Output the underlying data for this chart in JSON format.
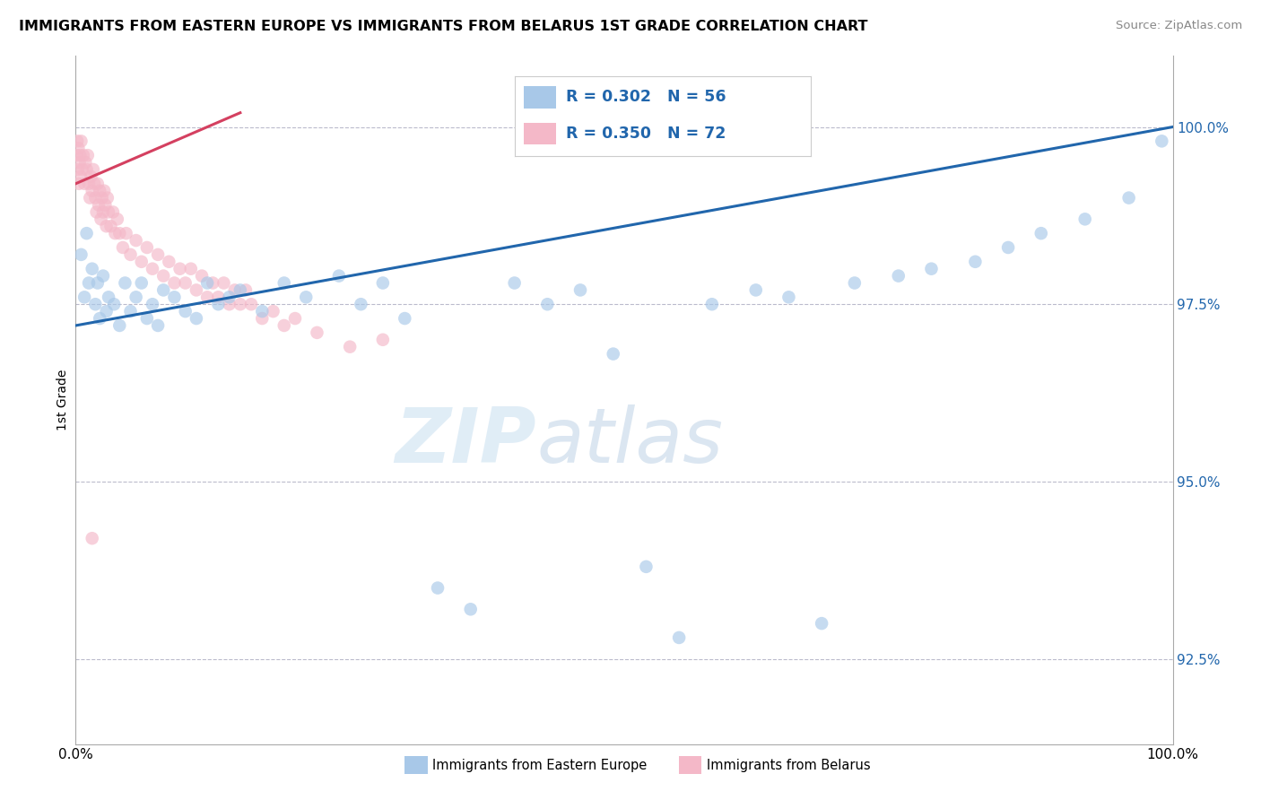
{
  "title": "IMMIGRANTS FROM EASTERN EUROPE VS IMMIGRANTS FROM BELARUS 1ST GRADE CORRELATION CHART",
  "source": "Source: ZipAtlas.com",
  "xlabel_blue": "Immigrants from Eastern Europe",
  "xlabel_pink": "Immigrants from Belarus",
  "ylabel": "1st Grade",
  "watermark_zip": "ZIP",
  "watermark_atlas": "atlas",
  "blue_R": 0.302,
  "blue_N": 56,
  "pink_R": 0.35,
  "pink_N": 72,
  "blue_color": "#a8c8e8",
  "pink_color": "#f4b8c8",
  "blue_line_color": "#2166ac",
  "pink_line_color": "#d44060",
  "xlim": [
    0.0,
    100.0
  ],
  "ylim": [
    91.3,
    101.0
  ],
  "yticks": [
    92.5,
    95.0,
    97.5,
    100.0
  ],
  "ytick_labels": [
    "92.5%",
    "95.0%",
    "97.5%",
    "100.0%"
  ],
  "blue_line_x0": 0.0,
  "blue_line_y0": 97.2,
  "blue_line_x1": 100.0,
  "blue_line_y1": 100.0,
  "pink_line_x0": 0.0,
  "pink_line_y0": 99.2,
  "pink_line_x1": 15.0,
  "pink_line_y1": 100.2,
  "blue_x": [
    0.5,
    0.8,
    1.0,
    1.2,
    1.5,
    1.8,
    2.0,
    2.2,
    2.5,
    2.8,
    3.0,
    3.5,
    4.0,
    4.5,
    5.0,
    5.5,
    6.0,
    6.5,
    7.0,
    7.5,
    8.0,
    9.0,
    10.0,
    11.0,
    12.0,
    13.0,
    14.0,
    15.0,
    17.0,
    19.0,
    21.0,
    24.0,
    26.0,
    28.0,
    30.0,
    33.0,
    36.0,
    40.0,
    43.0,
    46.0,
    49.0,
    52.0,
    55.0,
    58.0,
    62.0,
    65.0,
    68.0,
    71.0,
    75.0,
    78.0,
    82.0,
    85.0,
    88.0,
    92.0,
    96.0,
    99.0
  ],
  "blue_y": [
    98.2,
    97.6,
    98.5,
    97.8,
    98.0,
    97.5,
    97.8,
    97.3,
    97.9,
    97.4,
    97.6,
    97.5,
    97.2,
    97.8,
    97.4,
    97.6,
    97.8,
    97.3,
    97.5,
    97.2,
    97.7,
    97.6,
    97.4,
    97.3,
    97.8,
    97.5,
    97.6,
    97.7,
    97.4,
    97.8,
    97.6,
    97.9,
    97.5,
    97.8,
    97.3,
    93.5,
    93.2,
    97.8,
    97.5,
    97.7,
    96.8,
    93.8,
    92.8,
    97.5,
    97.7,
    97.6,
    93.0,
    97.8,
    97.9,
    98.0,
    98.1,
    98.3,
    98.5,
    98.7,
    99.0,
    99.8
  ],
  "pink_x": [
    0.1,
    0.15,
    0.2,
    0.25,
    0.3,
    0.35,
    0.4,
    0.45,
    0.5,
    0.6,
    0.7,
    0.8,
    0.9,
    1.0,
    1.1,
    1.2,
    1.3,
    1.4,
    1.5,
    1.6,
    1.7,
    1.8,
    1.9,
    2.0,
    2.1,
    2.2,
    2.3,
    2.4,
    2.5,
    2.6,
    2.7,
    2.8,
    2.9,
    3.0,
    3.2,
    3.4,
    3.6,
    3.8,
    4.0,
    4.3,
    4.6,
    5.0,
    5.5,
    6.0,
    6.5,
    7.0,
    7.5,
    8.0,
    8.5,
    9.0,
    9.5,
    10.0,
    10.5,
    11.0,
    11.5,
    12.0,
    12.5,
    13.0,
    13.5,
    14.0,
    14.5,
    15.0,
    15.5,
    16.0,
    17.0,
    18.0,
    19.0,
    20.0,
    22.0,
    25.0,
    28.0,
    1.5
  ],
  "pink_y": [
    99.6,
    99.8,
    99.4,
    99.7,
    99.2,
    99.5,
    99.6,
    99.3,
    99.8,
    99.4,
    99.6,
    99.2,
    99.5,
    99.4,
    99.6,
    99.2,
    99.0,
    99.3,
    99.1,
    99.4,
    99.2,
    99.0,
    98.8,
    99.2,
    98.9,
    99.1,
    98.7,
    99.0,
    98.8,
    99.1,
    98.9,
    98.6,
    99.0,
    98.8,
    98.6,
    98.8,
    98.5,
    98.7,
    98.5,
    98.3,
    98.5,
    98.2,
    98.4,
    98.1,
    98.3,
    98.0,
    98.2,
    97.9,
    98.1,
    97.8,
    98.0,
    97.8,
    98.0,
    97.7,
    97.9,
    97.6,
    97.8,
    97.6,
    97.8,
    97.5,
    97.7,
    97.5,
    97.7,
    97.5,
    97.3,
    97.4,
    97.2,
    97.3,
    97.1,
    96.9,
    97.0,
    94.2
  ]
}
